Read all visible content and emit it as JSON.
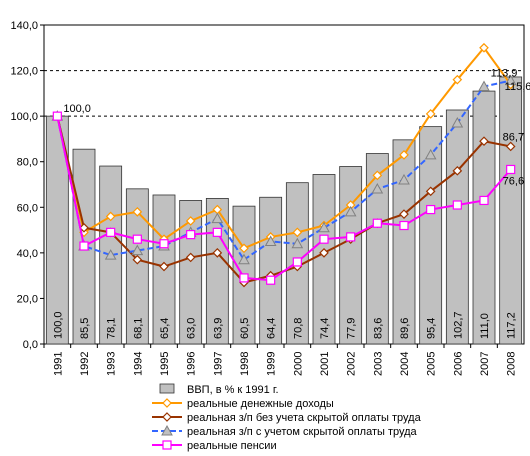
{
  "chart_data": {
    "type": "bar",
    "categories": [
      "1991",
      "1992",
      "1993",
      "1994",
      "1995",
      "1996",
      "1997",
      "1998",
      "1999",
      "2000",
      "2001",
      "2002",
      "2003",
      "2004",
      "2005",
      "2006",
      "2007",
      "2008"
    ],
    "ylim": [
      0,
      140
    ],
    "yticks": [
      "0,0",
      "20,0",
      "40,0",
      "60,0",
      "80,0",
      "100,0",
      "120,0",
      "140,0"
    ],
    "grid": "dashed horizontal at 100, 120, 140",
    "legend_position": "bottom",
    "series": [
      {
        "name": "ВВП, в % к 1991 г.",
        "kind": "bar",
        "color": "#c0c0c0",
        "values": [
          100.0,
          85.5,
          78.1,
          68.1,
          65.4,
          63.0,
          63.9,
          60.5,
          64.4,
          70.8,
          74.4,
          77.9,
          83.6,
          89.6,
          95.4,
          102.7,
          111.0,
          117.2
        ],
        "value_labels": [
          "100,0",
          "85,5",
          "78,1",
          "68,1",
          "65,4",
          "63,0",
          "63,9",
          "60,5",
          "64,4",
          "70,8",
          "74,4",
          "77,9",
          "83,6",
          "89,6",
          "95,4",
          "102,7",
          "111,0",
          "117,2"
        ]
      },
      {
        "name": "реальные денежные доходы",
        "kind": "line",
        "marker": "diamond",
        "color": "#ff9900",
        "values": [
          100,
          49,
          56,
          58,
          46,
          54,
          59,
          42,
          47,
          49,
          52,
          61,
          74,
          83,
          101,
          116,
          130,
          113.9
        ]
      },
      {
        "name": "реальная з/п без учета скрытой оплаты труда",
        "kind": "line",
        "marker": "diamond",
        "color": "#993300",
        "values": [
          100,
          51,
          49,
          37,
          34,
          38,
          40,
          27,
          30,
          34,
          40,
          46,
          53,
          57,
          67,
          76,
          89,
          86.7
        ]
      },
      {
        "name": "реальная з/п с учетом скрытой оплаты труда",
        "kind": "line",
        "marker": "triangle",
        "color": "#3366ff",
        "values": [
          100,
          43,
          39,
          41,
          43,
          49,
          55,
          37,
          45,
          44,
          51,
          58,
          68,
          72,
          83,
          97,
          113,
          115.6
        ]
      },
      {
        "name": "реальные пенсии",
        "kind": "line",
        "marker": "square",
        "color": "#ff00ff",
        "values": [
          100,
          43,
          49,
          46,
          44,
          48,
          49,
          29,
          28,
          36,
          46,
          47,
          53,
          52,
          59,
          61,
          63,
          76.6
        ]
      }
    ],
    "annotations": [
      "100,0",
      "113,9",
      "115,6",
      "86,7",
      "76,6"
    ]
  }
}
